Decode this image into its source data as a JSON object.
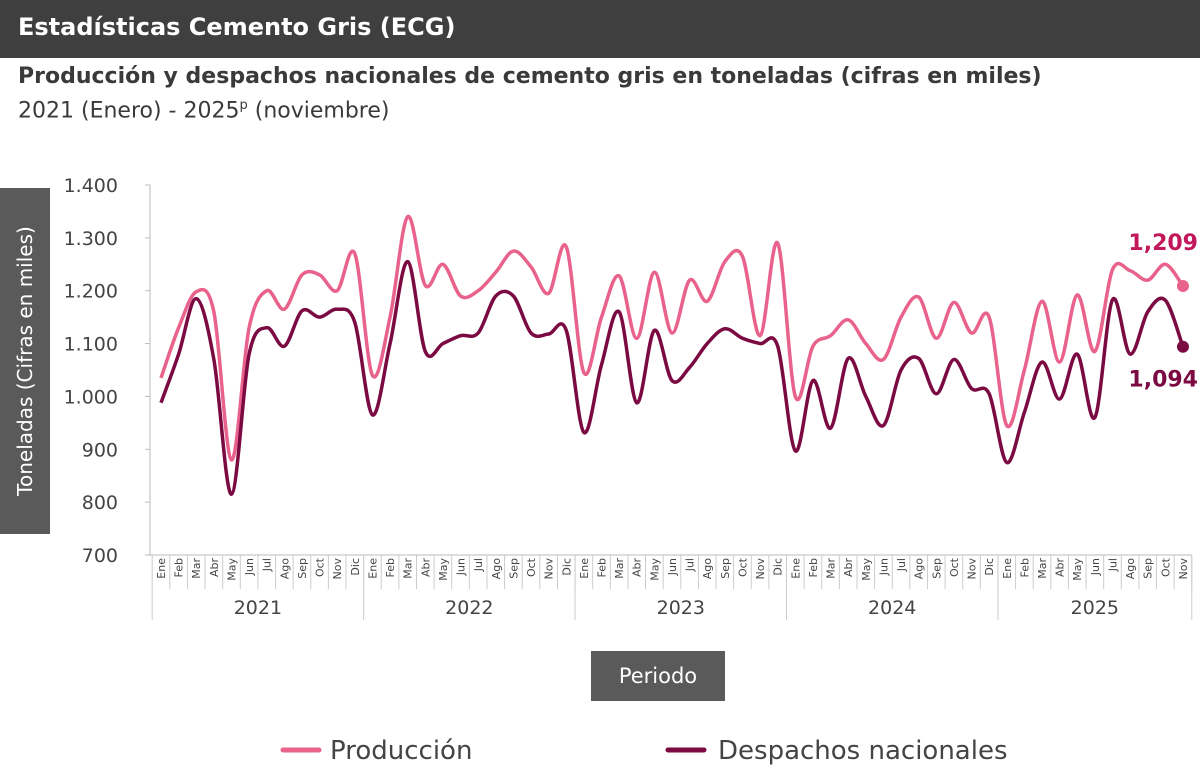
{
  "header": {
    "title": "Estadísticas Cemento Gris (ECG)"
  },
  "chart_data": {
    "type": "line",
    "title": "Producción y despachos nacionales de cemento gris en toneladas (cifras en miles)",
    "subtitle": "2021 (Enero) - 2025",
    "subtitle_sup": "p",
    "subtitle_end": "(noviembre)",
    "ylabel": "Toneladas (Cifras en miles)",
    "xlabel": "Periodo",
    "ylim": [
      700,
      1400
    ],
    "yticks": [
      "700",
      "800",
      "900",
      "1.000",
      "1.100",
      "1.200",
      "1.300",
      "1.400"
    ],
    "ytick_values": [
      700,
      800,
      900,
      1000,
      1100,
      1200,
      1300,
      1400
    ],
    "grid": false,
    "legend_position": "bottom",
    "months": [
      "Ene",
      "Feb",
      "Mar",
      "Abr",
      "May",
      "Jun",
      "Jul",
      "Ago",
      "Sep",
      "Oct",
      "Nov",
      "Dic"
    ],
    "years": [
      "2021",
      "2022",
      "2023",
      "2024",
      "2025"
    ],
    "last_year_months": 11,
    "series": [
      {
        "name": "Producción",
        "color": "#e8628c",
        "end_label": "1,209",
        "end_label_color": "#c2185b",
        "values": [
          1035,
          1130,
          1198,
          1160,
          880,
          1130,
          1200,
          1165,
          1230,
          1230,
          1200,
          1270,
          1040,
          1150,
          1340,
          1210,
          1250,
          1190,
          1200,
          1235,
          1275,
          1245,
          1195,
          1283,
          1045,
          1150,
          1228,
          1110,
          1235,
          1120,
          1220,
          1180,
          1255,
          1265,
          1115,
          1290,
          1000,
          1095,
          1115,
          1145,
          1100,
          1070,
          1150,
          1188,
          1110,
          1178,
          1120,
          1150,
          945,
          1050,
          1180,
          1065,
          1192,
          1085,
          1240,
          1238,
          1220,
          1250,
          1209
        ]
      },
      {
        "name": "Despachos nacionales",
        "color": "#7b0a42",
        "end_label": "1,094",
        "end_label_color": "#7b0a42",
        "values": [
          988,
          1080,
          1185,
          1070,
          815,
          1080,
          1130,
          1095,
          1162,
          1150,
          1165,
          1140,
          965,
          1100,
          1255,
          1085,
          1100,
          1115,
          1120,
          1190,
          1190,
          1120,
          1118,
          1125,
          932,
          1060,
          1160,
          988,
          1125,
          1030,
          1055,
          1100,
          1128,
          1110,
          1100,
          1095,
          897,
          1030,
          940,
          1072,
          1000,
          945,
          1050,
          1072,
          1005,
          1070,
          1015,
          1005,
          875,
          970,
          1065,
          995,
          1080,
          960,
          1183,
          1080,
          1160,
          1182,
          1094
        ]
      }
    ]
  }
}
